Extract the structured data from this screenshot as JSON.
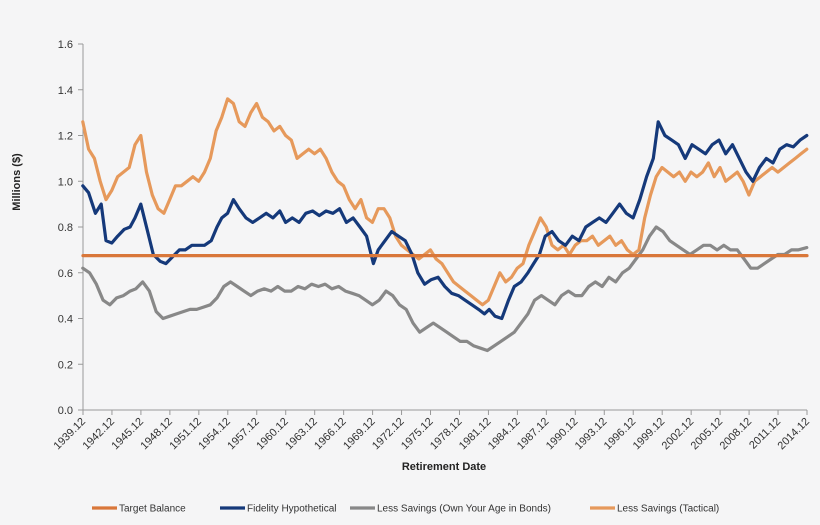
{
  "chart_data": {
    "type": "line",
    "title": "",
    "xlabel": "Retirement Date",
    "ylabel": "Millions ($)",
    "ylim": [
      0,
      1.6
    ],
    "yticks": [
      "0.0",
      "0.2",
      "0.4",
      "0.6",
      "0.8",
      "1.0",
      "1.2",
      "1.4",
      "1.6"
    ],
    "xlim": [
      1939.917,
      2014.917
    ],
    "xticks": [
      "1939.12",
      "1942.12",
      "1945.12",
      "1948.12",
      "1951.12",
      "1954.12",
      "1957.12",
      "1960.12",
      "1963.12",
      "1966.12",
      "1969.12",
      "1972.12",
      "1975.12",
      "1978.12",
      "1981.12",
      "1984.12",
      "1987.12",
      "1990.12",
      "1993.12",
      "1996.12",
      "1999.12",
      "2002.12",
      "2005.12",
      "2008.12",
      "2011.12",
      "2014.12"
    ],
    "grid": false,
    "legend_position": "bottom",
    "series": [
      {
        "name": "Target Balance",
        "color": "#d9773a",
        "x": [
          1939.917,
          2014.917
        ],
        "y": [
          0.675,
          0.675
        ]
      },
      {
        "name": "Fidelity Hypothetical",
        "color": "#15397a",
        "x": [
          1939.9,
          1940.5,
          1941.2,
          1941.8,
          1942.3,
          1942.9,
          1943.5,
          1944.2,
          1944.8,
          1945.3,
          1945.9,
          1946.5,
          1947.2,
          1947.9,
          1948.5,
          1949.2,
          1949.9,
          1950.5,
          1951.2,
          1951.9,
          1952.5,
          1953.2,
          1953.8,
          1954.3,
          1954.9,
          1955.5,
          1956.1,
          1956.8,
          1957.5,
          1958.2,
          1958.9,
          1959.6,
          1960.3,
          1960.9,
          1961.6,
          1962.3,
          1963.0,
          1963.7,
          1964.4,
          1965.1,
          1965.8,
          1966.5,
          1967.2,
          1967.9,
          1968.6,
          1969.3,
          1970.0,
          1970.5,
          1971.2,
          1971.9,
          1972.6,
          1973.3,
          1974.0,
          1974.6,
          1975.3,
          1976.0,
          1976.7,
          1977.4,
          1978.1,
          1978.8,
          1979.5,
          1980.2,
          1980.9,
          1981.5,
          1982.0,
          1982.6,
          1983.3,
          1984.0,
          1984.6,
          1985.3,
          1986.0,
          1986.6,
          1987.2,
          1987.8,
          1988.5,
          1989.2,
          1989.9,
          1990.6,
          1991.3,
          1992.0,
          1992.7,
          1993.4,
          1994.1,
          1994.8,
          1995.5,
          1996.2,
          1996.9,
          1997.6,
          1998.3,
          1999.0,
          1999.5,
          2000.2,
          2000.9,
          2001.6,
          2002.3,
          2003.0,
          2003.7,
          2004.4,
          2005.1,
          2005.8,
          2006.5,
          2007.2,
          2007.9,
          2008.6,
          2009.3,
          2010.0,
          2010.7,
          2011.4,
          2012.1,
          2012.8,
          2013.5,
          2014.2,
          2014.9
        ],
        "y": [
          0.98,
          0.95,
          0.86,
          0.9,
          0.74,
          0.73,
          0.76,
          0.79,
          0.8,
          0.84,
          0.9,
          0.8,
          0.68,
          0.65,
          0.64,
          0.67,
          0.7,
          0.7,
          0.72,
          0.72,
          0.72,
          0.74,
          0.8,
          0.84,
          0.86,
          0.92,
          0.88,
          0.84,
          0.82,
          0.84,
          0.86,
          0.84,
          0.87,
          0.82,
          0.84,
          0.82,
          0.86,
          0.87,
          0.85,
          0.87,
          0.86,
          0.88,
          0.82,
          0.84,
          0.8,
          0.76,
          0.64,
          0.7,
          0.74,
          0.78,
          0.76,
          0.74,
          0.68,
          0.6,
          0.55,
          0.57,
          0.58,
          0.54,
          0.51,
          0.5,
          0.48,
          0.46,
          0.44,
          0.42,
          0.44,
          0.41,
          0.4,
          0.48,
          0.54,
          0.56,
          0.6,
          0.64,
          0.68,
          0.76,
          0.78,
          0.74,
          0.72,
          0.76,
          0.74,
          0.8,
          0.82,
          0.84,
          0.82,
          0.86,
          0.9,
          0.86,
          0.84,
          0.92,
          1.02,
          1.1,
          1.26,
          1.2,
          1.18,
          1.16,
          1.1,
          1.16,
          1.14,
          1.12,
          1.16,
          1.18,
          1.12,
          1.16,
          1.1,
          1.04,
          1.0,
          1.06,
          1.1,
          1.08,
          1.14,
          1.16,
          1.15,
          1.18,
          1.2
        ]
      },
      {
        "name": "Less Savings (Own Your Age in Bonds)",
        "color": "#888888",
        "x": [
          1939.9,
          1940.6,
          1941.3,
          1942.0,
          1942.7,
          1943.4,
          1944.1,
          1944.8,
          1945.4,
          1946.1,
          1946.8,
          1947.5,
          1948.2,
          1948.9,
          1949.6,
          1950.3,
          1951.0,
          1951.7,
          1952.4,
          1953.1,
          1953.8,
          1954.5,
          1955.2,
          1955.9,
          1956.6,
          1957.3,
          1958.0,
          1958.7,
          1959.4,
          1960.1,
          1960.8,
          1961.5,
          1962.2,
          1962.9,
          1963.6,
          1964.3,
          1965.0,
          1965.7,
          1966.4,
          1967.1,
          1967.8,
          1968.5,
          1969.2,
          1969.9,
          1970.6,
          1971.3,
          1972.0,
          1972.7,
          1973.4,
          1974.1,
          1974.8,
          1975.5,
          1976.2,
          1976.9,
          1977.6,
          1978.3,
          1979.0,
          1979.7,
          1980.4,
          1981.1,
          1981.8,
          1982.5,
          1983.2,
          1983.9,
          1984.6,
          1985.3,
          1986.0,
          1986.7,
          1987.4,
          1988.1,
          1988.8,
          1989.5,
          1990.2,
          1990.9,
          1991.6,
          1992.3,
          1993.0,
          1993.7,
          1994.4,
          1995.1,
          1995.8,
          1996.5,
          1997.2,
          1997.9,
          1998.6,
          1999.3,
          2000.0,
          2000.7,
          2001.4,
          2002.1,
          2002.8,
          2003.5,
          2004.2,
          2004.9,
          2005.6,
          2006.3,
          2007.0,
          2007.7,
          2008.4,
          2009.1,
          2009.8,
          2010.5,
          2011.2,
          2011.9,
          2012.6,
          2013.3,
          2014.0,
          2014.9
        ],
        "y": [
          0.62,
          0.6,
          0.55,
          0.48,
          0.46,
          0.49,
          0.5,
          0.52,
          0.53,
          0.56,
          0.52,
          0.43,
          0.4,
          0.41,
          0.42,
          0.43,
          0.44,
          0.44,
          0.45,
          0.46,
          0.49,
          0.54,
          0.56,
          0.54,
          0.52,
          0.5,
          0.52,
          0.53,
          0.52,
          0.54,
          0.52,
          0.52,
          0.54,
          0.53,
          0.55,
          0.54,
          0.55,
          0.53,
          0.54,
          0.52,
          0.51,
          0.5,
          0.48,
          0.46,
          0.48,
          0.52,
          0.5,
          0.46,
          0.44,
          0.38,
          0.34,
          0.36,
          0.38,
          0.36,
          0.34,
          0.32,
          0.3,
          0.3,
          0.28,
          0.27,
          0.26,
          0.28,
          0.3,
          0.32,
          0.34,
          0.38,
          0.42,
          0.48,
          0.5,
          0.48,
          0.46,
          0.5,
          0.52,
          0.5,
          0.5,
          0.54,
          0.56,
          0.54,
          0.58,
          0.56,
          0.6,
          0.62,
          0.66,
          0.7,
          0.76,
          0.8,
          0.78,
          0.74,
          0.72,
          0.7,
          0.68,
          0.7,
          0.72,
          0.72,
          0.7,
          0.72,
          0.7,
          0.7,
          0.66,
          0.62,
          0.62,
          0.64,
          0.66,
          0.68,
          0.68,
          0.7,
          0.7,
          0.71
        ]
      },
      {
        "name": "Less Savings (Tactical)",
        "color": "#e6995b",
        "x": [
          1939.9,
          1940.5,
          1941.1,
          1941.7,
          1942.3,
          1942.9,
          1943.5,
          1944.1,
          1944.7,
          1945.3,
          1945.9,
          1946.5,
          1947.1,
          1947.7,
          1948.3,
          1948.9,
          1949.5,
          1950.1,
          1950.7,
          1951.3,
          1951.9,
          1952.5,
          1953.1,
          1953.7,
          1954.3,
          1954.9,
          1955.5,
          1956.1,
          1956.7,
          1957.3,
          1957.9,
          1958.5,
          1959.1,
          1959.7,
          1960.3,
          1960.9,
          1961.5,
          1962.1,
          1962.7,
          1963.3,
          1963.9,
          1964.5,
          1965.1,
          1965.7,
          1966.3,
          1966.9,
          1967.5,
          1968.1,
          1968.7,
          1969.3,
          1969.9,
          1970.5,
          1971.1,
          1971.7,
          1972.3,
          1972.9,
          1973.5,
          1974.1,
          1974.7,
          1975.3,
          1975.9,
          1976.5,
          1977.1,
          1977.7,
          1978.3,
          1978.9,
          1979.5,
          1980.1,
          1980.7,
          1981.3,
          1981.9,
          1982.5,
          1983.1,
          1983.7,
          1984.3,
          1984.9,
          1985.5,
          1986.1,
          1986.7,
          1987.3,
          1987.9,
          1988.5,
          1989.1,
          1989.7,
          1990.3,
          1990.9,
          1991.5,
          1992.1,
          1992.7,
          1993.3,
          1993.9,
          1994.5,
          1995.1,
          1995.7,
          1996.3,
          1996.9,
          1997.5,
          1998.1,
          1998.7,
          1999.3,
          1999.9,
          2000.5,
          2001.1,
          2001.7,
          2002.3,
          2002.9,
          2003.5,
          2004.1,
          2004.7,
          2005.3,
          2005.9,
          2006.5,
          2007.1,
          2007.7,
          2008.3,
          2008.9,
          2009.5,
          2010.1,
          2010.7,
          2011.3,
          2011.9,
          2012.5,
          2013.1,
          2013.7,
          2014.3,
          2014.9
        ],
        "y": [
          1.26,
          1.14,
          1.1,
          1.0,
          0.92,
          0.96,
          1.02,
          1.04,
          1.06,
          1.16,
          1.2,
          1.04,
          0.94,
          0.88,
          0.86,
          0.92,
          0.98,
          0.98,
          1.0,
          1.02,
          1.0,
          1.04,
          1.1,
          1.22,
          1.28,
          1.36,
          1.34,
          1.26,
          1.24,
          1.3,
          1.34,
          1.28,
          1.26,
          1.22,
          1.24,
          1.2,
          1.18,
          1.1,
          1.12,
          1.14,
          1.12,
          1.14,
          1.1,
          1.04,
          1.0,
          0.98,
          0.92,
          0.88,
          0.92,
          0.84,
          0.82,
          0.88,
          0.88,
          0.84,
          0.76,
          0.72,
          0.7,
          0.68,
          0.66,
          0.68,
          0.7,
          0.66,
          0.64,
          0.6,
          0.56,
          0.54,
          0.52,
          0.5,
          0.48,
          0.46,
          0.48,
          0.54,
          0.6,
          0.56,
          0.58,
          0.62,
          0.64,
          0.72,
          0.78,
          0.84,
          0.8,
          0.72,
          0.7,
          0.72,
          0.68,
          0.72,
          0.74,
          0.74,
          0.76,
          0.72,
          0.74,
          0.76,
          0.72,
          0.74,
          0.7,
          0.68,
          0.7,
          0.84,
          0.94,
          1.02,
          1.06,
          1.04,
          1.02,
          1.04,
          1.0,
          1.04,
          1.02,
          1.04,
          1.08,
          1.02,
          1.06,
          1.0,
          1.02,
          1.04,
          1.0,
          0.94,
          1.0,
          1.02,
          1.04,
          1.06,
          1.04,
          1.06,
          1.08,
          1.1,
          1.12,
          1.14
        ]
      }
    ]
  }
}
